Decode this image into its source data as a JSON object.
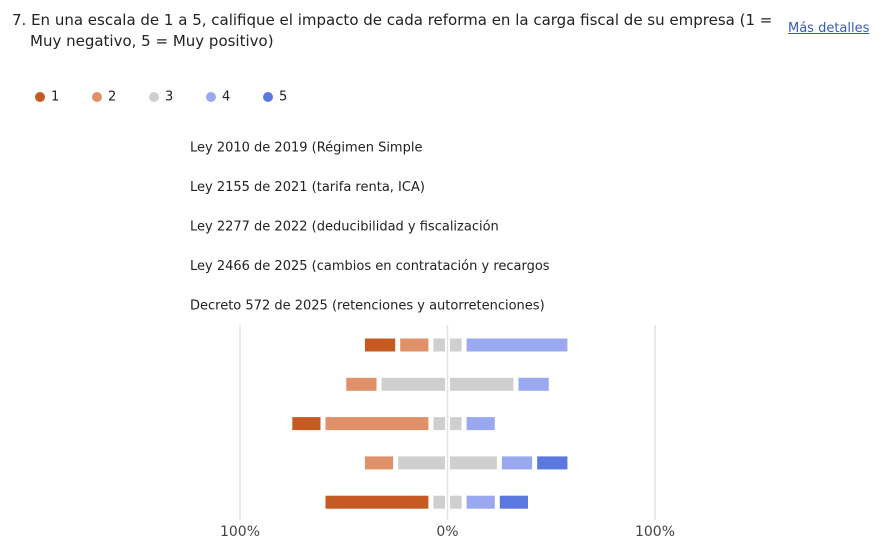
{
  "more_link": "Más detalles",
  "chart_data": {
    "type": "diverging_bar",
    "title": "7. En una escala de 1 a 5, califique el impacto de cada reforma en la carga fiscal de su empresa (1 = Muy negativo, 5 = Muy positivo)",
    "categories": [
      "Ley 2010 de 2019 (Régimen Simple",
      "Ley 2155 de 2021 (tarifa renta, ICA)",
      "Ley 2277 de 2022 (deducibilidad y fiscalización",
      "Ley 2466 de 2025 (cambios en contratación y recargos",
      "Decreto 572 de 2025 (retenciones y autorretenciones)"
    ],
    "series": [
      {
        "name": "1",
        "color": "#c55a22",
        "values": [
          17,
          0,
          16,
          0,
          52
        ]
      },
      {
        "name": "2",
        "color": "#e0916a",
        "values": [
          16,
          17,
          52,
          16,
          0
        ]
      },
      {
        "name": "3",
        "color": "#cfcfcf",
        "values": [
          16,
          66,
          16,
          50,
          16
        ]
      },
      {
        "name": "4",
        "color": "#9aa9ef",
        "values": [
          51,
          17,
          16,
          17,
          16
        ]
      },
      {
        "name": "5",
        "color": "#5b78e0",
        "values": [
          0,
          0,
          0,
          17,
          16
        ]
      }
    ],
    "neutral_series": 2,
    "xlim": [
      -100,
      100
    ],
    "xticks": [
      {
        "value": -100,
        "label": "100%"
      },
      {
        "value": 0,
        "label": "0%"
      },
      {
        "value": 100,
        "label": "100%"
      }
    ],
    "grid": true
  }
}
